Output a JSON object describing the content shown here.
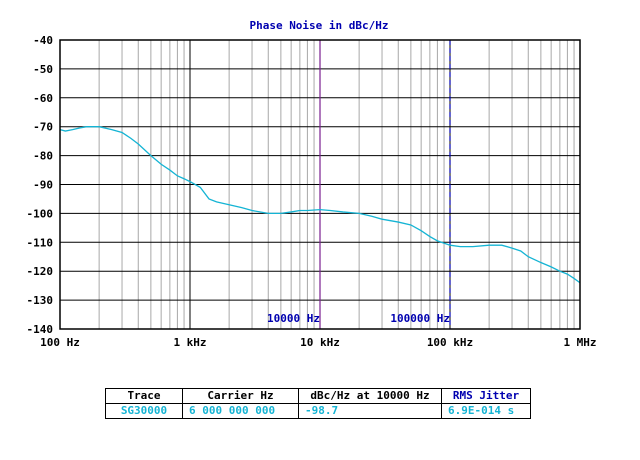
{
  "chart_data": {
    "type": "line",
    "title": "Phase Noise in dBc/Hz",
    "xscale": "log",
    "xlim": [
      100,
      1000000
    ],
    "ylim": [
      -140,
      -40
    ],
    "yticks": [
      -40,
      -50,
      -60,
      -70,
      -80,
      -90,
      -100,
      -110,
      -120,
      -130,
      -140
    ],
    "ytick_labels": [
      "-40",
      "-50",
      "-60",
      "-70",
      "-80",
      "-90",
      "-100",
      "-110",
      "-120",
      "-130",
      "-140"
    ],
    "xticks": [
      100,
      1000,
      10000,
      100000,
      1000000
    ],
    "xtick_labels": [
      "100 Hz",
      "1 kHz",
      "10 kHz",
      "100 kHz",
      "1 MHz"
    ],
    "grid": true,
    "markers": [
      {
        "x": 10000,
        "label": "10000 Hz",
        "style": "solid",
        "color": "#7a1f8f"
      },
      {
        "x": 100000,
        "label": "100000 Hz",
        "style": "dashed",
        "color": "#0000b0"
      }
    ],
    "series": [
      {
        "color": "#14b4d4",
        "x": [
          100,
          110,
          125,
          140,
          160,
          200,
          250,
          300,
          350,
          400,
          500,
          600,
          700,
          800,
          900,
          1000,
          1200,
          1400,
          1600,
          2000,
          2500,
          3000,
          4000,
          5000,
          6000,
          7000,
          8000,
          10000,
          12000,
          15000,
          20000,
          25000,
          30000,
          40000,
          50000,
          60000,
          70000,
          80000,
          100000,
          120000,
          150000,
          200000,
          250000,
          300000,
          350000,
          400000,
          500000,
          600000,
          700000,
          800000,
          900000,
          1000000
        ],
        "y": [
          -71,
          -71.5,
          -71,
          -70.5,
          -70,
          -70,
          -71,
          -72,
          -74,
          -76,
          -80,
          -83,
          -85,
          -87,
          -88,
          -89,
          -91,
          -95,
          -96,
          -97,
          -98,
          -99,
          -100,
          -100,
          -99.5,
          -99,
          -99,
          -98.7,
          -99,
          -99.5,
          -100,
          -101,
          -102,
          -103,
          -104,
          -106,
          -108,
          -109.5,
          -111,
          -111.5,
          -111.5,
          -111,
          -111,
          -112,
          -113,
          -115,
          -117,
          -118.5,
          -120,
          -121,
          -122.5,
          -124
        ]
      }
    ]
  },
  "table": {
    "headers": [
      "Trace",
      "Carrier Hz",
      "dBc/Hz at 10000 Hz",
      "RMS Jitter"
    ],
    "row": [
      "SG30000",
      "6 000 000 000",
      "-98.7",
      "6.9E-014 s"
    ]
  }
}
